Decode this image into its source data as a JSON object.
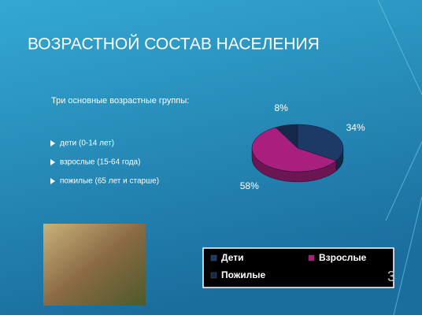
{
  "slide": {
    "title": "ВОЗРАСТНОЙ СОСТАВ НАСЕЛЕНИЯ",
    "intro": "Три основные возрастные группы:",
    "bullets": [
      "дети (0-14 лет)",
      "взрослые (15-64 года)",
      "пожилые (65 лет и старше)"
    ],
    "number": "3"
  },
  "chart_data": {
    "type": "pie",
    "categories": [
      "Дети",
      "Взрослые",
      "Пожилые"
    ],
    "values": [
      34,
      58,
      8
    ],
    "value_labels": [
      "34%",
      "58%",
      "8%"
    ],
    "colors": [
      "#1d3a66",
      "#a81f7e",
      "#16284a"
    ],
    "legend": "bottom"
  }
}
